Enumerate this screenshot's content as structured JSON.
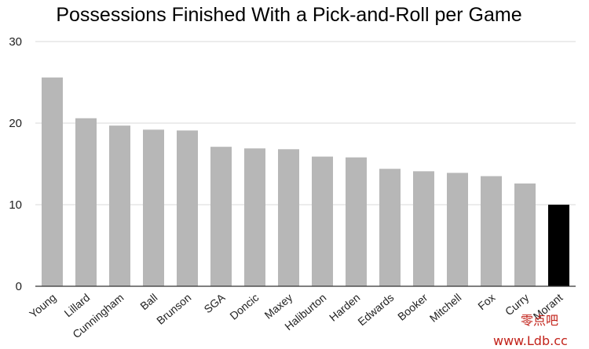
{
  "chart_data": {
    "type": "bar",
    "title": "Possessions Finished With a Pick-and-Roll per Game",
    "xlabel": "",
    "ylabel": "",
    "ylim": [
      0,
      30
    ],
    "yticks": [
      0,
      10,
      20,
      30
    ],
    "grid": true,
    "categories": [
      "Young",
      "Lillard",
      "Cunningham",
      "Ball",
      "Brunson",
      "SGA",
      "Doncic",
      "Maxey",
      "Haliburton",
      "Harden",
      "Edwards",
      "Booker",
      "Mitchell",
      "Fox",
      "Curry",
      "Morant"
    ],
    "values": [
      25.6,
      20.6,
      19.7,
      19.2,
      19.1,
      17.1,
      16.9,
      16.8,
      15.9,
      15.8,
      14.4,
      14.1,
      13.9,
      13.5,
      12.6,
      10.0
    ],
    "colors": {
      "default": "#b7b7b7",
      "highlight": "#000000",
      "highlight_category": "Morant"
    }
  },
  "watermark": {
    "line1": "零点吧",
    "line2": "www.Ldb.cc"
  }
}
